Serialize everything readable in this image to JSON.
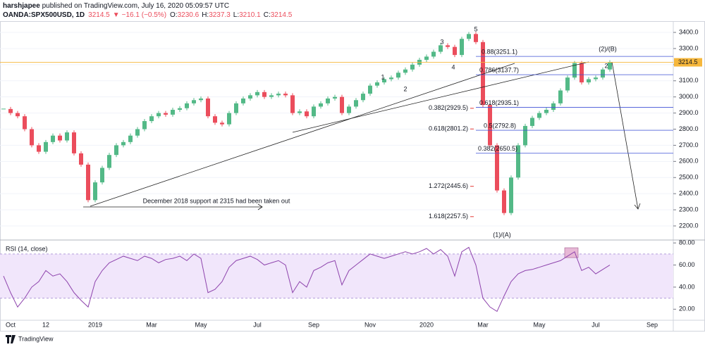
{
  "header": {
    "author": "harshjapee",
    "published": " published on TradingView.com, July 16, 2020 05:09:57 UTC",
    "symbol": "OANDA:SPX500USD, 1D",
    "last": "3214.5",
    "arrow": "▼",
    "change": "−16.1 (−0.5%)",
    "open_label": "O:",
    "open": "3230.6",
    "high_label": "H:",
    "high": "3237.3",
    "low_label": "L:",
    "low": "3210.1",
    "close_label": "C:",
    "close": "3214.5"
  },
  "footer": {
    "brand": "TradingView"
  },
  "chart_data": [
    {
      "type": "candlestick",
      "categories": [
        null,
        "Oct",
        null,
        null,
        null,
        null,
        "12",
        null,
        null,
        null,
        null,
        null,
        null,
        "2019",
        null,
        null,
        null,
        null,
        null,
        null,
        null,
        "Mar",
        null,
        null,
        null,
        null,
        null,
        null,
        "May",
        null,
        null,
        null,
        null,
        null,
        null,
        null,
        "Jul",
        null,
        null,
        null,
        null,
        null,
        null,
        null,
        "Sep",
        null,
        null,
        null,
        null,
        null,
        null,
        null,
        "Nov",
        null,
        null,
        null,
        null,
        null,
        null,
        null,
        "2020",
        null,
        null,
        null,
        null,
        null,
        null,
        null,
        "Mar",
        null,
        null,
        null,
        null,
        null,
        null,
        null,
        "May",
        null,
        null,
        null,
        null,
        null,
        null,
        null,
        "Jul",
        null,
        null,
        null,
        null,
        null,
        null,
        null,
        "Sep"
      ],
      "values": [
        2925,
        2900,
        2880,
        2800,
        2700,
        2660,
        2720,
        2760,
        2730,
        2780,
        2650,
        2580,
        2360,
        2470,
        2560,
        2640,
        2700,
        2720,
        2760,
        2800,
        2850,
        2880,
        2900,
        2890,
        2920,
        2930,
        2960,
        2980,
        2990,
        2880,
        2840,
        2830,
        2900,
        2960,
        2990,
        3010,
        3030,
        3000,
        3010,
        3020,
        3010,
        2900,
        2910,
        2880,
        2940,
        2960,
        2990,
        3000,
        2900,
        2940,
        2980,
        3020,
        3070,
        3090,
        3110,
        3120,
        3150,
        3170,
        3200,
        3230,
        3250,
        3280,
        3320,
        3310,
        3260,
        3360,
        3390,
        3340,
        2950,
        2700,
        2420,
        2280,
        2500,
        2700,
        2820,
        2870,
        2900,
        2920,
        2960,
        3040,
        3120,
        3210,
        3090,
        3110,
        3120,
        3170,
        3214.5,
        null,
        null,
        null,
        null,
        null,
        null
      ],
      "up_color": "#53b987",
      "down_color": "#eb4d5c",
      "ylim": [
        2117,
        3470
      ],
      "yticks": [
        {
          "value": 2200,
          "label": "2200.0"
        },
        {
          "value": 2300,
          "label": "2300.0"
        },
        {
          "value": 2400,
          "label": "2400.0"
        },
        {
          "value": 2500,
          "label": "2500.0"
        },
        {
          "value": 2600,
          "label": "2600.0"
        },
        {
          "value": 2700,
          "label": "2700.0"
        },
        {
          "value": 2800,
          "label": "2800.0"
        },
        {
          "value": 2900,
          "label": "2900.0"
        },
        {
          "value": 3000,
          "label": "3000.0"
        },
        {
          "value": 3100,
          "label": "3100.0"
        },
        {
          "value": 3200,
          "label": "3200.0"
        },
        {
          "value": 3300,
          "label": "3300.0"
        },
        {
          "value": 3400,
          "label": "3400.0"
        }
      ],
      "grid": true,
      "last_price": {
        "value": 3214.5,
        "label": "3214.5",
        "color": "#f6b73c"
      },
      "fib_blue": [
        {
          "label": "0.88(3251.1)",
          "value": 3251.1
        },
        {
          "label": "0.786(3137.7)",
          "value": 3137.7
        },
        {
          "label": "0.618(2935.1)",
          "value": 2935.1
        },
        {
          "label": "0.5(2792.8)",
          "value": 2792.8
        },
        {
          "label": "0.382(2650.5)",
          "value": 2650.5
        }
      ],
      "fib_red": [
        {
          "label": "0.382(2929.5)",
          "value": 2929.5
        },
        {
          "label": "0.618(2801.2)",
          "value": 2801.2
        },
        {
          "label": "1.272(2445.6)",
          "value": 2445.6
        },
        {
          "label": "1.618(2257.5)",
          "value": 2257.5
        }
      ],
      "waves": [
        "1",
        "2",
        "3",
        "4",
        "5",
        "(1)/(A)",
        "(2)/(B)",
        "2"
      ],
      "annotation": "December 2018 support at 2315 had been taken out"
    },
    {
      "type": "line",
      "title": "RSI (14, close)",
      "values": [
        50,
        35,
        22,
        30,
        40,
        45,
        55,
        50,
        52,
        45,
        35,
        28,
        22,
        45,
        55,
        62,
        65,
        68,
        66,
        64,
        68,
        66,
        62,
        65,
        66,
        68,
        64,
        70,
        66,
        35,
        38,
        45,
        58,
        64,
        66,
        68,
        65,
        60,
        62,
        64,
        60,
        35,
        45,
        40,
        55,
        58,
        62,
        64,
        42,
        55,
        60,
        65,
        70,
        68,
        66,
        68,
        70,
        72,
        70,
        72,
        75,
        70,
        74,
        68,
        50,
        72,
        76,
        60,
        30,
        22,
        18,
        32,
        45,
        52,
        55,
        56,
        58,
        60,
        62,
        64,
        68,
        72,
        55,
        58,
        52,
        56,
        60,
        null,
        null,
        null,
        null,
        null,
        null
      ],
      "color": "#8e44ad",
      "band": [
        30,
        70
      ],
      "band_color": "#f1e6fb",
      "ylim": [
        10,
        82
      ],
      "yticks": [
        {
          "value": 20,
          "label": "20.00"
        },
        {
          "value": 40,
          "label": "40.00"
        },
        {
          "value": 60,
          "label": "60.00"
        },
        {
          "value": 80,
          "label": "80.00"
        }
      ]
    }
  ]
}
